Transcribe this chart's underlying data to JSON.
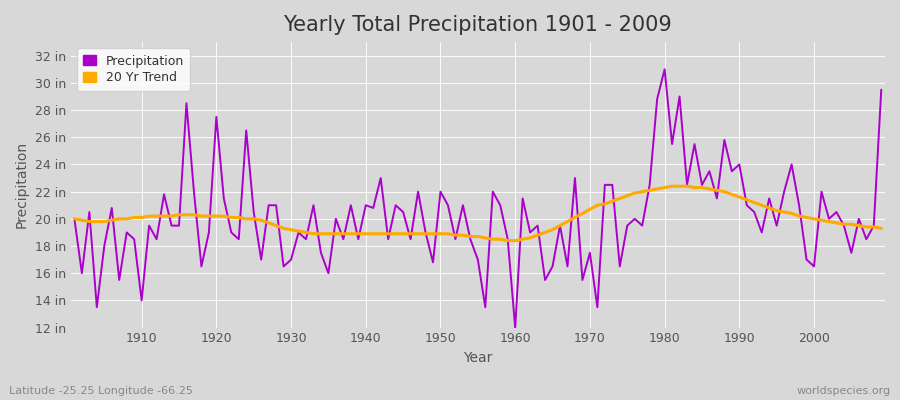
{
  "title": "Yearly Total Precipitation 1901 - 2009",
  "xlabel": "Year",
  "ylabel": "Precipitation",
  "subtitle": "Latitude -25.25 Longitude -66.25",
  "watermark": "worldspecies.org",
  "years": [
    1901,
    1902,
    1903,
    1904,
    1905,
    1906,
    1907,
    1908,
    1909,
    1910,
    1911,
    1912,
    1913,
    1914,
    1915,
    1916,
    1917,
    1918,
    1919,
    1920,
    1921,
    1922,
    1923,
    1924,
    1925,
    1926,
    1927,
    1928,
    1929,
    1930,
    1931,
    1932,
    1933,
    1934,
    1935,
    1936,
    1937,
    1938,
    1939,
    1940,
    1941,
    1942,
    1943,
    1944,
    1945,
    1946,
    1947,
    1948,
    1949,
    1950,
    1951,
    1952,
    1953,
    1954,
    1955,
    1956,
    1957,
    1958,
    1959,
    1960,
    1961,
    1962,
    1963,
    1964,
    1965,
    1966,
    1967,
    1968,
    1969,
    1970,
    1971,
    1972,
    1973,
    1974,
    1975,
    1976,
    1977,
    1978,
    1979,
    1980,
    1981,
    1982,
    1983,
    1984,
    1985,
    1986,
    1987,
    1988,
    1989,
    1990,
    1991,
    1992,
    1993,
    1994,
    1995,
    1996,
    1997,
    1998,
    1999,
    2000,
    2001,
    2002,
    2003,
    2004,
    2005,
    2006,
    2007,
    2008,
    2009
  ],
  "precip": [
    20.0,
    16.0,
    20.5,
    13.5,
    18.0,
    20.8,
    15.5,
    19.0,
    18.5,
    14.0,
    19.5,
    18.5,
    21.8,
    19.5,
    19.5,
    28.5,
    22.0,
    16.5,
    19.0,
    27.5,
    21.5,
    19.0,
    18.5,
    26.5,
    20.5,
    17.0,
    21.0,
    21.0,
    16.5,
    17.0,
    19.0,
    18.5,
    21.0,
    17.5,
    16.0,
    20.0,
    18.5,
    21.0,
    18.5,
    21.0,
    20.8,
    23.0,
    18.5,
    21.0,
    20.5,
    18.5,
    22.0,
    19.0,
    16.8,
    22.0,
    21.0,
    18.5,
    21.0,
    18.5,
    17.0,
    13.5,
    22.0,
    21.0,
    18.5,
    12.0,
    21.5,
    19.0,
    19.5,
    15.5,
    16.5,
    19.5,
    16.5,
    23.0,
    15.5,
    17.5,
    13.5,
    22.5,
    22.5,
    16.5,
    19.5,
    20.0,
    19.5,
    22.5,
    28.8,
    31.0,
    25.5,
    29.0,
    22.5,
    25.5,
    22.5,
    23.5,
    21.5,
    25.8,
    23.5,
    24.0,
    21.0,
    20.5,
    19.0,
    21.5,
    19.5,
    22.0,
    24.0,
    21.0,
    17.0,
    16.5,
    22.0,
    20.0,
    20.5,
    19.5,
    17.5,
    20.0,
    18.5,
    19.5,
    29.5
  ],
  "trend": [
    20.0,
    19.9,
    19.8,
    19.8,
    19.8,
    19.9,
    20.0,
    20.0,
    20.1,
    20.1,
    20.2,
    20.2,
    20.2,
    20.2,
    20.3,
    20.3,
    20.3,
    20.2,
    20.2,
    20.2,
    20.2,
    20.1,
    20.1,
    20.0,
    20.0,
    19.9,
    19.7,
    19.5,
    19.3,
    19.2,
    19.1,
    19.0,
    18.9,
    18.9,
    18.9,
    18.9,
    18.9,
    18.9,
    18.9,
    18.9,
    18.9,
    18.9,
    18.9,
    18.9,
    18.9,
    18.9,
    18.9,
    18.9,
    18.9,
    18.9,
    18.9,
    18.8,
    18.8,
    18.7,
    18.7,
    18.6,
    18.5,
    18.5,
    18.4,
    18.4,
    18.5,
    18.6,
    18.8,
    19.0,
    19.2,
    19.5,
    19.8,
    20.1,
    20.4,
    20.7,
    21.0,
    21.1,
    21.3,
    21.5,
    21.7,
    21.9,
    22.0,
    22.1,
    22.2,
    22.3,
    22.4,
    22.4,
    22.4,
    22.3,
    22.3,
    22.2,
    22.1,
    22.0,
    21.8,
    21.6,
    21.4,
    21.2,
    21.0,
    20.8,
    20.6,
    20.5,
    20.4,
    20.2,
    20.1,
    20.0,
    19.9,
    19.8,
    19.7,
    19.6,
    19.6,
    19.5,
    19.4,
    19.4,
    19.3
  ],
  "precip_color": "#aa00cc",
  "trend_color": "#ffaa00",
  "fig_bg_color": "#d8d8d8",
  "plot_bg_color": "#d8d8d8",
  "grid_color": "#ffffff",
  "title_color": "#333333",
  "label_color": "#555555",
  "tick_color": "#555555",
  "ylim": [
    12,
    33
  ],
  "yticks": [
    12,
    14,
    16,
    18,
    20,
    22,
    24,
    26,
    28,
    30,
    32
  ],
  "xticks": [
    1910,
    1920,
    1930,
    1940,
    1950,
    1960,
    1970,
    1980,
    1990,
    2000
  ],
  "title_fontsize": 15,
  "axis_label_fontsize": 10,
  "tick_fontsize": 9,
  "legend_fontsize": 9,
  "linewidth_precip": 1.4,
  "linewidth_trend": 2.2
}
